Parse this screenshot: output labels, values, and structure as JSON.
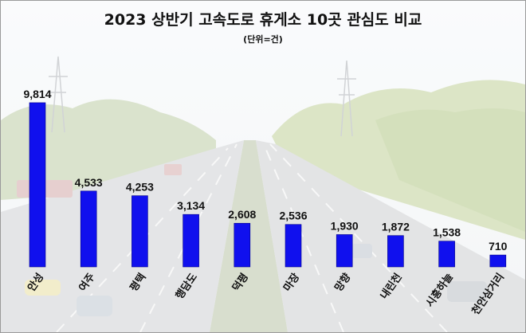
{
  "title": "2023 상반기 고속도로 휴게소 10곳 관심도 비교",
  "subtitle": "(단위=건)",
  "colors": {
    "bar": "#1010ee",
    "bar_edge": "#00008a",
    "text": "#111111"
  },
  "chart_data": {
    "type": "bar",
    "title": "2023 상반기 고속도로 휴게소 10곳 관심도 비교",
    "unit": "(단위=건)",
    "categories": [
      "안성",
      "여주",
      "평택",
      "행담도",
      "덕평",
      "마장",
      "망향",
      "내린천",
      "시흥하늘",
      "천안삼거리"
    ],
    "values": [
      9814,
      4533,
      4253,
      3134,
      2608,
      2536,
      1930,
      1872,
      1538,
      710
    ],
    "value_labels": [
      "9,814",
      "4,533",
      "4,253",
      "3,134",
      "2,608",
      "2,536",
      "1,930",
      "1,872",
      "1,538",
      "710"
    ],
    "ylim": [
      0,
      10000
    ],
    "grid": false,
    "legend": "none"
  }
}
